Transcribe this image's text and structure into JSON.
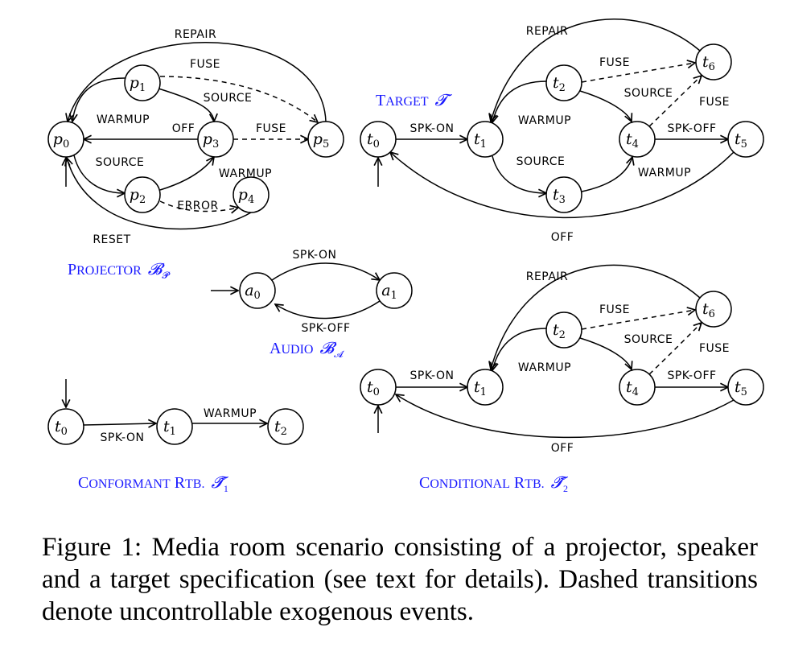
{
  "diagrams": [
    {
      "id": "projector",
      "title_prefix": "Projector",
      "title_math": "𝓑",
      "title_sub": "𝓟",
      "states": [
        "p0",
        "p1",
        "p2",
        "p3",
        "p4",
        "p5"
      ],
      "edge_labels": [
        "REPAIR",
        "FUSE",
        "SOURCE",
        "WARMUP",
        "OFF",
        "FUSE",
        "SOURCE",
        "WARMUP",
        "ERROR",
        "RESET"
      ]
    },
    {
      "id": "target",
      "title_prefix": "Target",
      "title_math": "𝓣",
      "title_sub": "",
      "states": [
        "t0",
        "t1",
        "t2",
        "t3",
        "t4",
        "t5",
        "t6"
      ],
      "edge_labels": [
        "REPAIR",
        "FUSE",
        "SOURCE",
        "FUSE",
        "WARMUP",
        "SPK-ON",
        "SPK-OFF",
        "SOURCE",
        "WARMUP",
        "OFF"
      ]
    },
    {
      "id": "audio",
      "title_prefix": "Audio",
      "title_math": "𝓑",
      "title_sub": "𝓐",
      "states": [
        "a0",
        "a1"
      ],
      "edge_labels": [
        "SPK-ON",
        "SPK-OFF"
      ]
    },
    {
      "id": "conformant",
      "title_prefix": "Conformant RTB.",
      "title_math": "𝓣̃",
      "title_sub": "1",
      "states": [
        "t0",
        "t1",
        "t2"
      ],
      "edge_labels": [
        "WARMUP",
        "SPK-ON"
      ]
    },
    {
      "id": "conditional",
      "title_prefix": "Conditional RTB.",
      "title_math": "𝓣̃",
      "title_sub": "2",
      "states": [
        "t0",
        "t1",
        "t2",
        "t4",
        "t5",
        "t6"
      ],
      "edge_labels": [
        "REPAIR",
        "FUSE",
        "SOURCE",
        "FUSE",
        "WARMUP",
        "SPK-ON",
        "SPK-OFF",
        "OFF"
      ]
    }
  ],
  "caption": "Figure 1: Media room scenario consisting of a projector, speaker and a target specification (see text for details). Dashed transitions denote uncontrollable exogenous events.",
  "colors": {
    "title": "#1a1aff",
    "ink": "#000000"
  }
}
